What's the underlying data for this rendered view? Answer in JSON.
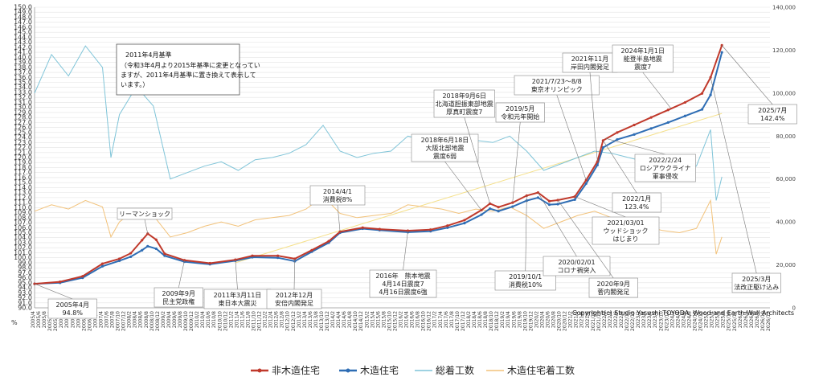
{
  "chart_data": {
    "type": "line",
    "left_axis": {
      "ylim": [
        90.0,
        150.0
      ],
      "step": 1.0,
      "unit_label": "%"
    },
    "right_axis": {
      "ylim": [
        0,
        140000
      ],
      "ticks": [
        0,
        20000,
        40000,
        60000,
        80000,
        100000,
        120000,
        140000
      ]
    },
    "x_range": [
      "2005/4",
      "2026/12"
    ],
    "grid": "horizontal",
    "legend_position": "bottom",
    "note": {
      "line1": "2011年4月基準",
      "line2": "（令和3年4月より2015年基準に変更となってい",
      "line3": "ますが、2011年4月基準に置き換えて表示して",
      "line4": "います。）"
    },
    "copyright": "Copyright(c) Studio Yasushi TOYODA, Wood and Earth Wall Architects",
    "series": [
      {
        "name": "非木造住宅",
        "color": "#c0392b",
        "axis": "left",
        "points": [
          [
            "2005/4",
            94.8
          ],
          [
            "2006/1",
            95.2
          ],
          [
            "2006/9",
            96.3
          ],
          [
            "2007/4",
            98.8
          ],
          [
            "2007/10",
            99.8
          ],
          [
            "2008/2",
            100.9
          ],
          [
            "2008/6",
            103.5
          ],
          [
            "2008/8",
            104.8
          ],
          [
            "2008/11",
            103.6
          ],
          [
            "2009/2",
            100.8
          ],
          [
            "2009/9",
            99.5
          ],
          [
            "2010/6",
            98.9
          ],
          [
            "2011/3",
            99.6
          ],
          [
            "2011/9",
            100.4
          ],
          [
            "2012/6",
            100.4
          ],
          [
            "2012/12",
            99.8
          ],
          [
            "2013/6",
            101.5
          ],
          [
            "2013/12",
            103.3
          ],
          [
            "2014/4",
            105.2
          ],
          [
            "2014/12",
            106.0
          ],
          [
            "2015/6",
            105.7
          ],
          [
            "2016/4",
            105.4
          ],
          [
            "2016/12",
            105.6
          ],
          [
            "2017/6",
            106.4
          ],
          [
            "2017/12",
            107.5
          ],
          [
            "2018/6",
            109.5
          ],
          [
            "2018/9",
            110.8
          ],
          [
            "2018/12",
            110.1
          ],
          [
            "2019/5",
            111.0
          ],
          [
            "2019/10",
            112.4
          ],
          [
            "2020/2",
            113.0
          ],
          [
            "2020/6",
            111.3
          ],
          [
            "2020/9",
            111.5
          ],
          [
            "2021/3",
            112.2
          ],
          [
            "2021/7",
            115.5
          ],
          [
            "2021/11",
            119.2
          ],
          [
            "2022/1",
            123.4
          ],
          [
            "2022/6",
            125.0
          ],
          [
            "2022/12",
            126.5
          ],
          [
            "2023/6",
            128.0
          ],
          [
            "2023/12",
            129.5
          ],
          [
            "2024/6",
            131.0
          ],
          [
            "2024/12",
            132.8
          ],
          [
            "2025/3",
            136.0
          ],
          [
            "2025/7",
            142.4
          ]
        ]
      },
      {
        "name": "木造住宅",
        "color": "#2e6db4",
        "axis": "left",
        "points": [
          [
            "2005/4",
            94.8
          ],
          [
            "2006/1",
            95.0
          ],
          [
            "2006/9",
            96.0
          ],
          [
            "2007/4",
            98.3
          ],
          [
            "2007/10",
            99.4
          ],
          [
            "2008/2",
            100.2
          ],
          [
            "2008/6",
            101.5
          ],
          [
            "2008/8",
            102.3
          ],
          [
            "2008/11",
            101.8
          ],
          [
            "2009/2",
            100.4
          ],
          [
            "2009/9",
            99.2
          ],
          [
            "2010/6",
            98.7
          ],
          [
            "2011/3",
            99.4
          ],
          [
            "2011/9",
            100.1
          ],
          [
            "2012/6",
            100.0
          ],
          [
            "2012/12",
            99.3
          ],
          [
            "2013/6",
            101.2
          ],
          [
            "2013/12",
            103.0
          ],
          [
            "2014/4",
            105.0
          ],
          [
            "2014/12",
            105.8
          ],
          [
            "2015/6",
            105.5
          ],
          [
            "2016/4",
            105.1
          ],
          [
            "2016/12",
            105.3
          ],
          [
            "2017/6",
            106.0
          ],
          [
            "2017/12",
            106.9
          ],
          [
            "2018/6",
            108.6
          ],
          [
            "2018/9",
            109.8
          ],
          [
            "2018/12",
            109.3
          ],
          [
            "2019/5",
            110.2
          ],
          [
            "2019/10",
            111.4
          ],
          [
            "2020/2",
            112.0
          ],
          [
            "2020/6",
            110.6
          ],
          [
            "2020/9",
            110.7
          ],
          [
            "2021/3",
            111.6
          ],
          [
            "2021/7",
            114.8
          ],
          [
            "2021/11",
            118.5
          ],
          [
            "2022/1",
            122.0
          ],
          [
            "2022/6",
            123.6
          ],
          [
            "2022/12",
            124.6
          ],
          [
            "2023/6",
            125.8
          ],
          [
            "2023/12",
            127.0
          ],
          [
            "2024/6",
            128.3
          ],
          [
            "2024/12",
            129.6
          ],
          [
            "2025/3",
            132.5
          ],
          [
            "2025/7",
            141.0
          ]
        ]
      },
      {
        "name": "総着工数",
        "color": "#7fc4d8",
        "axis": "right",
        "points": [
          [
            "2005/4",
            100000
          ],
          [
            "2005/10",
            118000
          ],
          [
            "2006/4",
            108000
          ],
          [
            "2006/10",
            122000
          ],
          [
            "2007/4",
            112000
          ],
          [
            "2007/7",
            70000
          ],
          [
            "2007/10",
            90000
          ],
          [
            "2008/4",
            103000
          ],
          [
            "2008/10",
            94000
          ],
          [
            "2009/4",
            60000
          ],
          [
            "2009/10",
            63000
          ],
          [
            "2010/4",
            66000
          ],
          [
            "2010/10",
            68000
          ],
          [
            "2011/4",
            64000
          ],
          [
            "2011/10",
            69000
          ],
          [
            "2012/4",
            70000
          ],
          [
            "2012/10",
            72000
          ],
          [
            "2013/4",
            76000
          ],
          [
            "2013/10",
            85000
          ],
          [
            "2014/4",
            73000
          ],
          [
            "2014/10",
            70000
          ],
          [
            "2015/4",
            72000
          ],
          [
            "2015/10",
            73000
          ],
          [
            "2016/4",
            80000
          ],
          [
            "2016/10",
            78000
          ],
          [
            "2017/4",
            79000
          ],
          [
            "2017/10",
            76000
          ],
          [
            "2018/4",
            78000
          ],
          [
            "2018/10",
            77000
          ],
          [
            "2019/4",
            80000
          ],
          [
            "2019/10",
            73000
          ],
          [
            "2020/4",
            64000
          ],
          [
            "2020/10",
            67000
          ],
          [
            "2021/4",
            70000
          ],
          [
            "2021/10",
            73000
          ],
          [
            "2022/4",
            72000
          ],
          [
            "2022/10",
            70000
          ],
          [
            "2023/4",
            68000
          ],
          [
            "2023/10",
            65000
          ],
          [
            "2024/4",
            64000
          ],
          [
            "2024/10",
            66000
          ],
          [
            "2025/3",
            83000
          ],
          [
            "2025/5",
            50000
          ],
          [
            "2025/7",
            61000
          ]
        ]
      },
      {
        "name": "木造住宅着工数",
        "color": "#f2c27a",
        "axis": "right",
        "points": [
          [
            "2005/4",
            45000
          ],
          [
            "2005/10",
            48000
          ],
          [
            "2006/4",
            46000
          ],
          [
            "2006/10",
            50000
          ],
          [
            "2007/4",
            47000
          ],
          [
            "2007/7",
            33000
          ],
          [
            "2007/10",
            40000
          ],
          [
            "2008/4",
            46000
          ],
          [
            "2008/10",
            43000
          ],
          [
            "2009/4",
            33000
          ],
          [
            "2009/10",
            35000
          ],
          [
            "2010/4",
            38000
          ],
          [
            "2010/10",
            40000
          ],
          [
            "2011/4",
            38000
          ],
          [
            "2011/10",
            41000
          ],
          [
            "2012/4",
            42000
          ],
          [
            "2012/10",
            43000
          ],
          [
            "2013/4",
            46000
          ],
          [
            "2013/10",
            52000
          ],
          [
            "2014/4",
            44000
          ],
          [
            "2014/10",
            42000
          ],
          [
            "2015/4",
            43000
          ],
          [
            "2015/10",
            44000
          ],
          [
            "2016/4",
            48000
          ],
          [
            "2016/10",
            47000
          ],
          [
            "2017/4",
            46000
          ],
          [
            "2017/10",
            44000
          ],
          [
            "2018/4",
            46000
          ],
          [
            "2018/10",
            45000
          ],
          [
            "2019/4",
            47000
          ],
          [
            "2019/10",
            43000
          ],
          [
            "2020/4",
            37000
          ],
          [
            "2020/10",
            40000
          ],
          [
            "2021/4",
            43000
          ],
          [
            "2021/10",
            45000
          ],
          [
            "2022/4",
            42000
          ],
          [
            "2022/10",
            40000
          ],
          [
            "2023/4",
            38000
          ],
          [
            "2023/10",
            36000
          ],
          [
            "2024/4",
            35000
          ],
          [
            "2024/10",
            37000
          ],
          [
            "2025/3",
            50000
          ],
          [
            "2025/5",
            25000
          ],
          [
            "2025/7",
            33000
          ]
        ]
      }
    ],
    "annotations": [
      {
        "id": "a1",
        "lines": [
          "2005年4月",
          "94.8%"
        ],
        "target": "2005/4",
        "value": 94.8
      },
      {
        "id": "a2",
        "lines": [
          "リーマンショック"
        ],
        "target": "2008/8",
        "value": 104.8
      },
      {
        "id": "a3",
        "lines": [
          "2009年9月",
          "民主党政権"
        ],
        "target": "2009/9",
        "value": 99.5
      },
      {
        "id": "a4",
        "lines": [
          "2011年3月11日",
          "東日本大震災"
        ],
        "target": "2011/3",
        "value": 99.6
      },
      {
        "id": "a5",
        "lines": [
          "2012年12月",
          "安倍内閣発足"
        ],
        "target": "2012/12",
        "value": 99.8
      },
      {
        "id": "a6",
        "lines": [
          "2014/4/1",
          "消費税8%"
        ],
        "target": "2014/4",
        "value": 105.2
      },
      {
        "id": "a7",
        "lines": [
          "2016年　熊本地震",
          "4月14日震度7",
          "4月16日震度6強"
        ],
        "target": "2016/4",
        "value": 105.4
      },
      {
        "id": "a8",
        "lines": [
          "2018年6月18日",
          "大阪北部地震",
          "震度6弱"
        ],
        "target": "2018/6",
        "value": 109.5
      },
      {
        "id": "a9",
        "lines": [
          "2018年9月6日",
          "北海道胆振東部地震",
          "厚真町震度7"
        ],
        "target": "2018/9",
        "value": 110.8
      },
      {
        "id": "a10",
        "lines": [
          "2019/5月",
          "令和元年開始"
        ],
        "target": "2019/5",
        "value": 111.0
      },
      {
        "id": "a11",
        "lines": [
          "2019/10/1",
          "消費税10%"
        ],
        "target": "2019/10",
        "value": 112.4
      },
      {
        "id": "a12",
        "lines": [
          "2020/02/01",
          "コロナ禍突入"
        ],
        "target": "2020/2",
        "value": 113.0
      },
      {
        "id": "a13",
        "lines": [
          "2020年9月",
          "菅内閣発足"
        ],
        "target": "2020/9",
        "value": 111.5
      },
      {
        "id": "a14",
        "lines": [
          "2021/03/01",
          "ウッドショック",
          "はじまり"
        ],
        "target": "2021/3",
        "value": 112.2
      },
      {
        "id": "a15",
        "lines": [
          "2021/7/23～8/8",
          "東京オリンピック"
        ],
        "target": "2021/7",
        "value": 115.5
      },
      {
        "id": "a16",
        "lines": [
          "2021年11月",
          "岸田内閣発足"
        ],
        "target": "2021/11",
        "value": 119.2
      },
      {
        "id": "a17",
        "lines": [
          "2022/1月",
          "123.4%"
        ],
        "target": "2022/1",
        "value": 123.4
      },
      {
        "id": "a18",
        "lines": [
          "2022/2/24",
          "ロシアウクライナ",
          "軍事侵攻"
        ],
        "target": "2022/2",
        "value": 123.8
      },
      {
        "id": "a19",
        "lines": [
          "2024年1月1日",
          "能登半島地震",
          "震度7"
        ],
        "target": "2024/1",
        "value": 129.8
      },
      {
        "id": "a20",
        "lines": [
          "2025/7月",
          "142.4%"
        ],
        "target": "2025/7",
        "value": 142.4
      },
      {
        "id": "a21",
        "lines": [
          "2025/3月",
          "法改正駆け込み"
        ],
        "target": "2025/3",
        "value": 136.0
      }
    ]
  }
}
